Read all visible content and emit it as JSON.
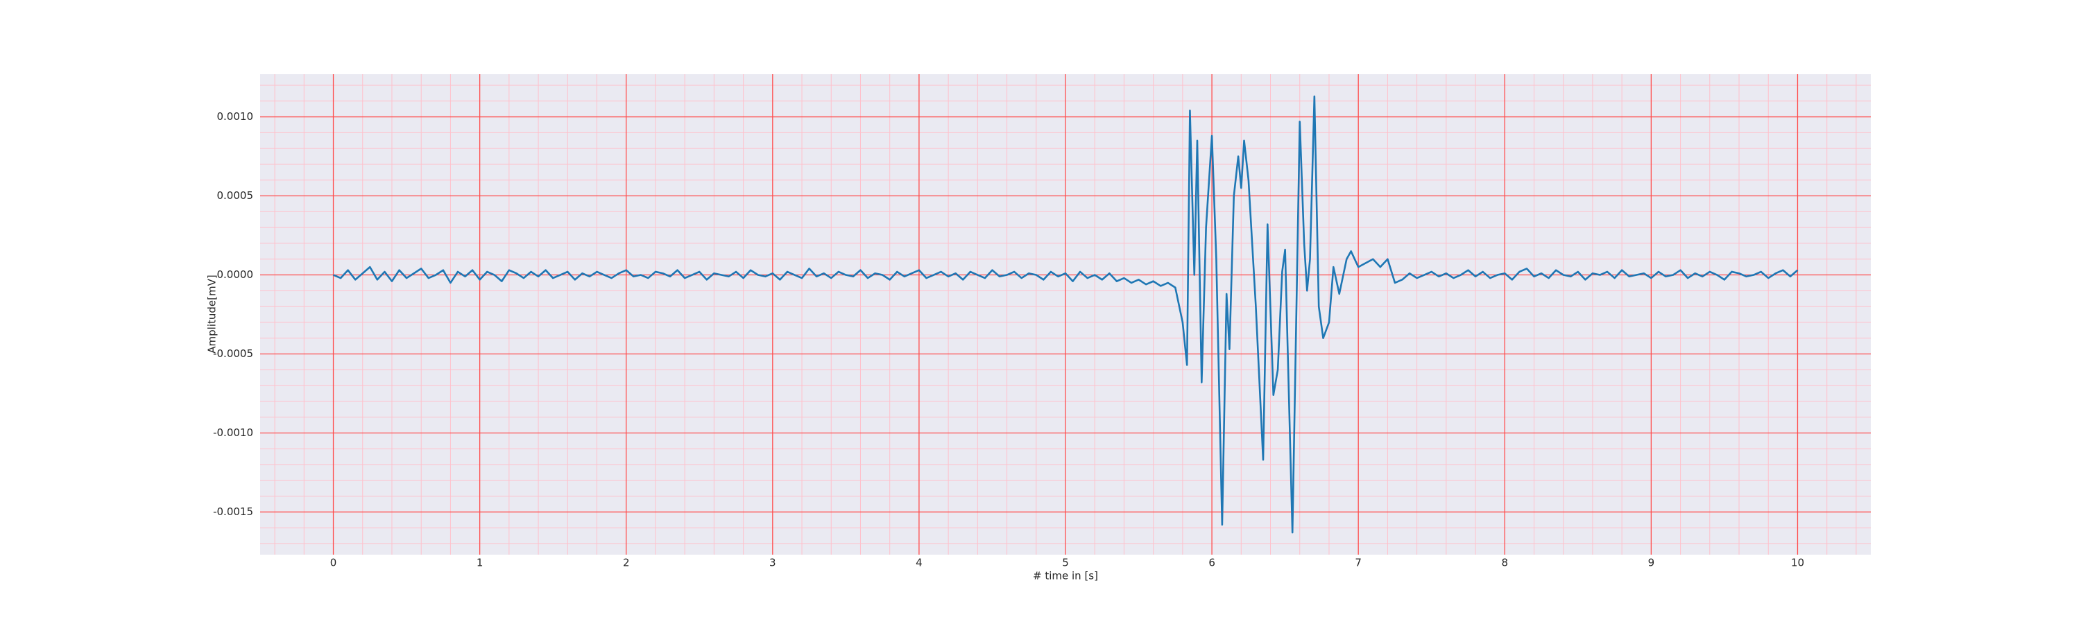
{
  "chart_data": {
    "type": "line",
    "xlabel": "# time in [s]",
    "ylabel": "Amplitude[mV]",
    "xlim": [
      -0.5,
      10.5
    ],
    "ylim": [
      -0.00177,
      0.00127
    ],
    "xticks": [
      0,
      1,
      2,
      3,
      4,
      5,
      6,
      7,
      8,
      9,
      10
    ],
    "yticks": [
      {
        "value": -0.0015,
        "label": "-0.0015"
      },
      {
        "value": -0.001,
        "label": "-0.0010"
      },
      {
        "value": -0.0005,
        "label": "-0.0005"
      },
      {
        "value": 0,
        "label": "0.0000"
      },
      {
        "value": 0.0005,
        "label": "0.0005"
      },
      {
        "value": 0.001,
        "label": "0.0010"
      }
    ],
    "xminorticks": [
      -0.4,
      -0.2,
      0.2,
      0.4,
      0.6,
      0.8,
      1.2,
      1.4,
      1.6,
      1.8,
      2.2,
      2.4,
      2.6,
      2.8,
      3.2,
      3.4,
      3.6,
      3.8,
      4.2,
      4.4,
      4.6,
      4.8,
      5.2,
      5.4,
      5.6,
      5.8,
      6.2,
      6.4,
      6.6,
      6.8,
      7.2,
      7.4,
      7.6,
      7.8,
      8.2,
      8.4,
      8.6,
      8.8,
      9.2,
      9.4,
      9.6,
      9.8,
      10.2,
      10.4
    ],
    "yminorticks": [
      -0.0017,
      -0.0016,
      -0.0014,
      -0.0013,
      -0.0012,
      -0.0011,
      -0.0009,
      -0.0008,
      -0.0007,
      -0.0006,
      -0.0004,
      -0.0003,
      -0.0002,
      -0.0001,
      0.0001,
      0.0002,
      0.0003,
      0.0004,
      0.0006,
      0.0007,
      0.0008,
      0.0009,
      0.0011,
      0.0012
    ],
    "grid": true,
    "grid_color": "#ff4d4d",
    "minor_grid_color": "#ffc0cb",
    "background": "#eaeaf2",
    "color": "#1f77b4",
    "x": [
      0,
      0.05,
      0.1,
      0.15,
      0.2,
      0.25,
      0.3,
      0.35,
      0.4,
      0.45,
      0.5,
      0.55,
      0.6,
      0.65,
      0.7,
      0.75,
      0.8,
      0.85,
      0.9,
      0.95,
      1,
      1.05,
      1.1,
      1.15,
      1.2,
      1.25,
      1.3,
      1.35,
      1.4,
      1.45,
      1.5,
      1.55,
      1.6,
      1.65,
      1.7,
      1.75,
      1.8,
      1.85,
      1.9,
      1.95,
      2,
      2.05,
      2.1,
      2.15,
      2.2,
      2.25,
      2.3,
      2.35,
      2.4,
      2.45,
      2.5,
      2.55,
      2.6,
      2.65,
      2.7,
      2.75,
      2.8,
      2.85,
      2.9,
      2.95,
      3,
      3.05,
      3.1,
      3.15,
      3.2,
      3.25,
      3.3,
      3.35,
      3.4,
      3.45,
      3.5,
      3.55,
      3.6,
      3.65,
      3.7,
      3.75,
      3.8,
      3.85,
      3.9,
      3.95,
      4,
      4.05,
      4.1,
      4.15,
      4.2,
      4.25,
      4.3,
      4.35,
      4.4,
      4.45,
      4.5,
      4.55,
      4.6,
      4.65,
      4.7,
      4.75,
      4.8,
      4.85,
      4.9,
      4.95,
      5,
      5.05,
      5.1,
      5.15,
      5.2,
      5.25,
      5.3,
      5.35,
      5.4,
      5.45,
      5.5,
      5.55,
      5.6,
      5.65,
      5.7,
      5.75,
      5.8,
      5.83,
      5.85,
      5.88,
      5.9,
      5.93,
      5.96,
      6,
      6.03,
      6.07,
      6.1,
      6.12,
      6.15,
      6.18,
      6.2,
      6.22,
      6.25,
      6.3,
      6.35,
      6.38,
      6.42,
      6.45,
      6.48,
      6.5,
      6.55,
      6.6,
      6.63,
      6.65,
      6.67,
      6.7,
      6.73,
      6.76,
      6.8,
      6.83,
      6.87,
      6.92,
      6.95,
      7,
      7.1,
      7.15,
      7.2,
      7.25,
      7.3,
      7.35,
      7.4,
      7.45,
      7.5,
      7.55,
      7.6,
      7.65,
      7.7,
      7.75,
      7.8,
      7.85,
      7.9,
      7.95,
      8,
      8.05,
      8.1,
      8.15,
      8.2,
      8.25,
      8.3,
      8.35,
      8.4,
      8.45,
      8.5,
      8.55,
      8.6,
      8.65,
      8.7,
      8.75,
      8.8,
      8.85,
      8.9,
      8.95,
      9,
      9.05,
      9.1,
      9.15,
      9.2,
      9.25,
      9.3,
      9.35,
      9.4,
      9.45,
      9.5,
      9.55,
      9.6,
      9.65,
      9.7,
      9.75,
      9.8,
      9.85,
      9.9,
      9.95,
      10
    ],
    "values": [
      0,
      -2e-05,
      3e-05,
      -3e-05,
      1e-05,
      5e-05,
      -3e-05,
      2e-05,
      -4e-05,
      3e-05,
      -2e-05,
      1e-05,
      4e-05,
      -2e-05,
      0,
      3e-05,
      -5e-05,
      2e-05,
      -1e-05,
      3e-05,
      -3e-05,
      2e-05,
      0,
      -4e-05,
      3e-05,
      1e-05,
      -2e-05,
      2e-05,
      -1e-05,
      3e-05,
      -2e-05,
      0,
      2e-05,
      -3e-05,
      1e-05,
      -1e-05,
      2e-05,
      0,
      -2e-05,
      1e-05,
      3e-05,
      -1e-05,
      0,
      -2e-05,
      2e-05,
      1e-05,
      -1e-05,
      3e-05,
      -2e-05,
      0,
      2e-05,
      -3e-05,
      1e-05,
      0,
      -1e-05,
      2e-05,
      -2e-05,
      3e-05,
      0,
      -1e-05,
      1e-05,
      -3e-05,
      2e-05,
      0,
      -2e-05,
      4e-05,
      -1e-05,
      1e-05,
      -2e-05,
      2e-05,
      0,
      -1e-05,
      3e-05,
      -2e-05,
      1e-05,
      0,
      -3e-05,
      2e-05,
      -1e-05,
      1e-05,
      3e-05,
      -2e-05,
      0,
      2e-05,
      -1e-05,
      1e-05,
      -3e-05,
      2e-05,
      0,
      -2e-05,
      3e-05,
      -1e-05,
      0,
      2e-05,
      -2e-05,
      1e-05,
      0,
      -3e-05,
      2e-05,
      -1e-05,
      1e-05,
      -4e-05,
      2e-05,
      -2e-05,
      0,
      -3e-05,
      1e-05,
      -4e-05,
      -2e-05,
      -5e-05,
      -3e-05,
      -6e-05,
      -4e-05,
      -7e-05,
      -5e-05,
      -8e-05,
      -0.0003,
      -0.00057,
      0.00104,
      0,
      0.00085,
      -0.00068,
      0.0003,
      0.00088,
      0.0001,
      -0.00158,
      -0.00012,
      -0.00047,
      0.0005,
      0.00075,
      0.00055,
      0.00085,
      0.0006,
      -0.0002,
      -0.00117,
      0.00032,
      -0.00076,
      -0.0006,
      2e-05,
      0.00016,
      -0.00163,
      0.00097,
      0.0002,
      -0.0001,
      0.0001,
      0.00113,
      -0.0002,
      -0.0004,
      -0.0003,
      5e-05,
      -0.00012,
      0.0001,
      0.00015,
      5e-05,
      0.0001,
      5e-05,
      0.0001,
      -5e-05,
      -3e-05,
      1e-05,
      -2e-05,
      0,
      2e-05,
      -1e-05,
      1e-05,
      -2e-05,
      0,
      3e-05,
      -1e-05,
      2e-05,
      -2e-05,
      0,
      1e-05,
      -3e-05,
      2e-05,
      4e-05,
      -1e-05,
      1e-05,
      -2e-05,
      3e-05,
      0,
      -1e-05,
      2e-05,
      -3e-05,
      1e-05,
      0,
      2e-05,
      -2e-05,
      3e-05,
      -1e-05,
      0,
      1e-05,
      -2e-05,
      2e-05,
      -1e-05,
      0,
      3e-05,
      -2e-05,
      1e-05,
      -1e-05,
      2e-05,
      0,
      -3e-05,
      2e-05,
      1e-05,
      -1e-05,
      0,
      2e-05,
      -2e-05,
      1e-05,
      3e-05,
      -1e-05,
      3e-05
    ]
  }
}
